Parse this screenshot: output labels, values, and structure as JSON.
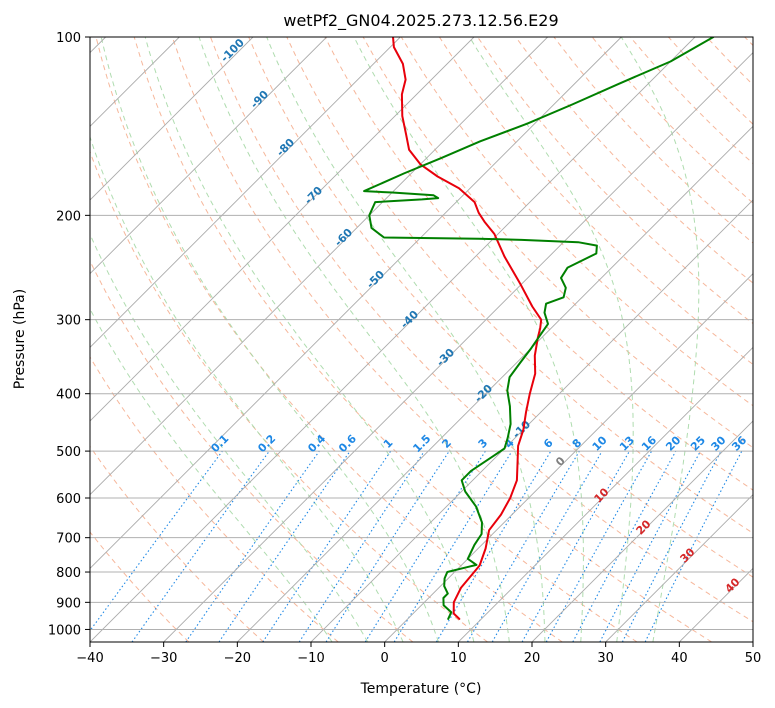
{
  "chart_data": {
    "type": "line",
    "title": "wetPf2_GN04.2025.273.12.56.E29",
    "xlabel": "Temperature (°C)",
    "ylabel": "Pressure (hPa)",
    "xlim": [
      -40,
      50
    ],
    "ylim": [
      1050,
      100
    ],
    "y_scale": "log",
    "grid": true,
    "x_ticks": [
      -40,
      -30,
      -20,
      -10,
      0,
      10,
      20,
      30,
      40,
      50
    ],
    "y_ticks": [
      100,
      200,
      300,
      400,
      500,
      600,
      700,
      800,
      900,
      1000
    ],
    "colors": {
      "temperature": "#e8000b",
      "dewpoint": "#008000",
      "isotherm": "#aaaaaa",
      "dry_adiabat": "#f4a582",
      "moist_adiabat": "#a6d8a6",
      "mixing_ratio": "#1e88e5",
      "label_blue": "#1f77b4",
      "label_red": "#d62728"
    },
    "series": [
      {
        "key": "temperature",
        "points": [
          [
            7.0,
            960
          ],
          [
            5.5,
            940
          ],
          [
            4.0,
            900
          ],
          [
            3.0,
            850
          ],
          [
            2.5,
            780
          ],
          [
            1.0,
            730
          ],
          [
            -1.0,
            680
          ],
          [
            -1.5,
            640
          ],
          [
            -2.5,
            600
          ],
          [
            -4.0,
            560
          ],
          [
            -6.5,
            520
          ],
          [
            -8.5,
            490
          ],
          [
            -10.0,
            460
          ],
          [
            -12.0,
            430
          ],
          [
            -14.0,
            400
          ],
          [
            -16.0,
            370
          ],
          [
            -18.5,
            345
          ],
          [
            -20.5,
            322
          ],
          [
            -21.5,
            310
          ],
          [
            -22.5,
            300
          ],
          [
            -25.5,
            285
          ],
          [
            -30.0,
            262
          ],
          [
            -36.0,
            235
          ],
          [
            -40.5,
            215
          ],
          [
            -43.5,
            205
          ],
          [
            -45.5,
            198
          ],
          [
            -47.5,
            190
          ],
          [
            -51.5,
            180
          ],
          [
            -56.0,
            172
          ],
          [
            -60.0,
            164
          ],
          [
            -63.5,
            155
          ],
          [
            -66.0,
            146
          ],
          [
            -69.0,
            136
          ],
          [
            -72.0,
            125
          ],
          [
            -73.5,
            118
          ],
          [
            -76.0,
            111
          ],
          [
            -79.5,
            104
          ],
          [
            -81.0,
            100
          ]
        ]
      },
      {
        "key": "dewpoint",
        "points": [
          [
            5.5,
            960
          ],
          [
            5.0,
            935
          ],
          [
            3.0,
            910
          ],
          [
            2.0,
            885
          ],
          [
            2.0,
            870
          ],
          [
            0.5,
            845
          ],
          [
            -0.5,
            820
          ],
          [
            -1.0,
            800
          ],
          [
            1.0,
            785
          ],
          [
            2.0,
            778
          ],
          [
            0.0,
            760
          ],
          [
            -1.0,
            720
          ],
          [
            -1.5,
            690
          ],
          [
            -3.0,
            660
          ],
          [
            -6.0,
            620
          ],
          [
            -9.5,
            585
          ],
          [
            -11.5,
            560
          ],
          [
            -11.5,
            540
          ],
          [
            -10.5,
            510
          ],
          [
            -10.0,
            495
          ],
          [
            -11.0,
            475
          ],
          [
            -12.5,
            450
          ],
          [
            -15.0,
            420
          ],
          [
            -17.5,
            395
          ],
          [
            -19.0,
            375
          ],
          [
            -19.5,
            355
          ],
          [
            -20.0,
            335
          ],
          [
            -20.5,
            320
          ],
          [
            -21.0,
            305
          ],
          [
            -23.0,
            292
          ],
          [
            -24.0,
            282
          ],
          [
            -22.5,
            275
          ],
          [
            -23.5,
            265
          ],
          [
            -25.5,
            255
          ],
          [
            -26.0,
            245
          ],
          [
            -24.0,
            232
          ],
          [
            -25.0,
            225
          ],
          [
            -28.0,
            222
          ],
          [
            -36.0,
            220
          ],
          [
            -42.0,
            219
          ],
          [
            -55.0,
            218
          ],
          [
            -58.0,
            210
          ],
          [
            -60.0,
            200
          ],
          [
            -61.0,
            190
          ],
          [
            -55.0,
            188
          ],
          [
            -53.0,
            187
          ],
          [
            -54.0,
            185
          ],
          [
            -60.0,
            183
          ],
          [
            -64.0,
            182
          ],
          [
            -61.0,
            170
          ],
          [
            -58.0,
            160
          ],
          [
            -55.0,
            150
          ],
          [
            -51.0,
            140
          ],
          [
            -47.5,
            130
          ],
          [
            -44.0,
            120
          ],
          [
            -40.0,
            110
          ],
          [
            -37.5,
            100
          ]
        ]
      }
    ],
    "isotherms_c": [
      -140,
      -130,
      -120,
      -110,
      -100,
      -90,
      -80,
      -70,
      -60,
      -50,
      -40,
      -30,
      -20,
      -10,
      0,
      10,
      20,
      30,
      40,
      50
    ],
    "dry_adiabat_theta_c": [
      -30,
      -20,
      -10,
      0,
      10,
      20,
      30,
      40,
      50,
      60,
      70,
      80,
      90,
      100,
      110,
      120,
      130,
      140,
      150,
      160,
      170,
      180,
      190,
      200
    ],
    "moist_adiabat_thetaw_c": [
      -10,
      -5,
      0,
      5,
      10,
      15,
      20,
      25,
      30,
      35
    ],
    "isotherm_labels": [
      "-100",
      "-90",
      "-80",
      "-70",
      "-60",
      "-50",
      "-40",
      "-30",
      "-20",
      "-10",
      "0",
      "10",
      "20",
      "30",
      "40"
    ],
    "mixing_ratio_labels": [
      "0.1",
      "0.2",
      "0.4",
      "0.6",
      "1",
      "1.5",
      "2",
      "3",
      "4",
      "6",
      "8",
      "10",
      "13",
      "16",
      "20",
      "25",
      "30",
      "36"
    ]
  }
}
